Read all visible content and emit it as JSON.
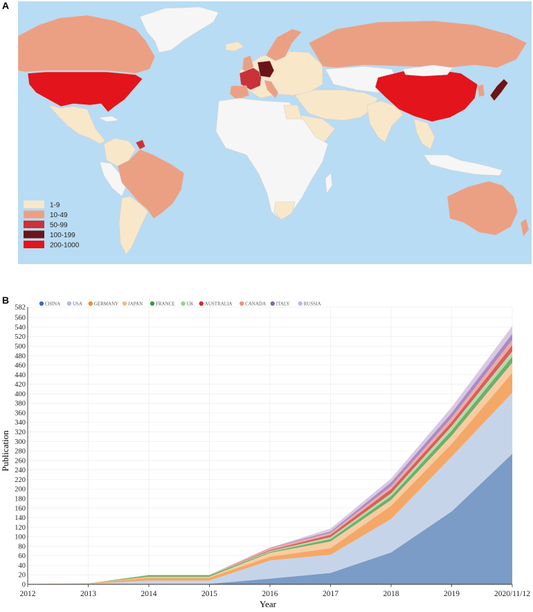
{
  "panels": {
    "a": "A",
    "b": "B"
  },
  "map": {
    "ocean_color": "#b8dcf4",
    "legend": [
      {
        "label": "1-9",
        "color": "#f9e7c9"
      },
      {
        "label": "10-49",
        "color": "#eba084"
      },
      {
        "label": "50-99",
        "color": "#c9323a"
      },
      {
        "label": "100-199",
        "color": "#6b1517"
      },
      {
        "label": "200-1000",
        "color": "#e3141b"
      }
    ]
  },
  "chart_data": {
    "type": "area",
    "stacked": true,
    "xlabel": "Year",
    "ylabel": "Publication",
    "categories": [
      "2012",
      "2013",
      "2014",
      "2015",
      "2016",
      "2017",
      "2018",
      "2019",
      "2020/11/12"
    ],
    "ylim": [
      0,
      582
    ],
    "yticks": [
      0,
      20,
      40,
      60,
      80,
      100,
      120,
      140,
      160,
      180,
      200,
      220,
      240,
      260,
      280,
      300,
      320,
      340,
      360,
      380,
      400,
      420,
      440,
      460,
      480,
      500,
      520,
      540,
      560,
      582
    ],
    "grid": true,
    "legend_position": "top-left",
    "series": [
      {
        "name": "CHINA",
        "color": "#7a9cc6",
        "legend_color": "#3a6eb5",
        "values": [
          0,
          0,
          1,
          1,
          12,
          24,
          67,
          153,
          274
        ]
      },
      {
        "name": "USA",
        "color": "#c6d4ea",
        "legend_color": "#a9bfdf",
        "values": [
          1,
          1,
          7,
          7,
          38,
          38,
          70,
          115,
          128
        ]
      },
      {
        "name": "GERMANY",
        "color": "#f4a867",
        "legend_color": "#f28a2e",
        "values": [
          0,
          1,
          6,
          6,
          8,
          14,
          28,
          27,
          42
        ]
      },
      {
        "name": "JAPAN",
        "color": "#f8cca2",
        "legend_color": "#f6ba80",
        "values": [
          0,
          0,
          2,
          2,
          8,
          14,
          12,
          17,
          21
        ]
      },
      {
        "name": "FRANCE",
        "color": "#6faf6c",
        "legend_color": "#3e9a3a",
        "values": [
          0,
          0,
          3,
          3,
          2,
          5,
          8,
          11,
          13
        ]
      },
      {
        "name": "UK",
        "color": "#b5dca8",
        "legend_color": "#9ed08f",
        "values": [
          0,
          0,
          1,
          1,
          2,
          4,
          6,
          9,
          11
        ]
      },
      {
        "name": "AUSTRALIA",
        "color": "#d95f5b",
        "legend_color": "#cc2e2b",
        "values": [
          0,
          0,
          0,
          0,
          2,
          5,
          9,
          9,
          13
        ]
      },
      {
        "name": "CANADA",
        "color": "#f0aaa4",
        "legend_color": "#ec8f88",
        "values": [
          0,
          0,
          0,
          0,
          4,
          4,
          6,
          9,
          11
        ]
      },
      {
        "name": "ITALY",
        "color": "#a78cc4",
        "legend_color": "#8a63b6",
        "values": [
          0,
          0,
          0,
          0,
          1,
          3,
          8,
          10,
          13
        ]
      },
      {
        "name": "RUSSIA",
        "color": "#d9c8e3",
        "legend_color": "#c8b2d8",
        "values": [
          0,
          0,
          0,
          0,
          0,
          6,
          8,
          12,
          16
        ]
      }
    ]
  }
}
